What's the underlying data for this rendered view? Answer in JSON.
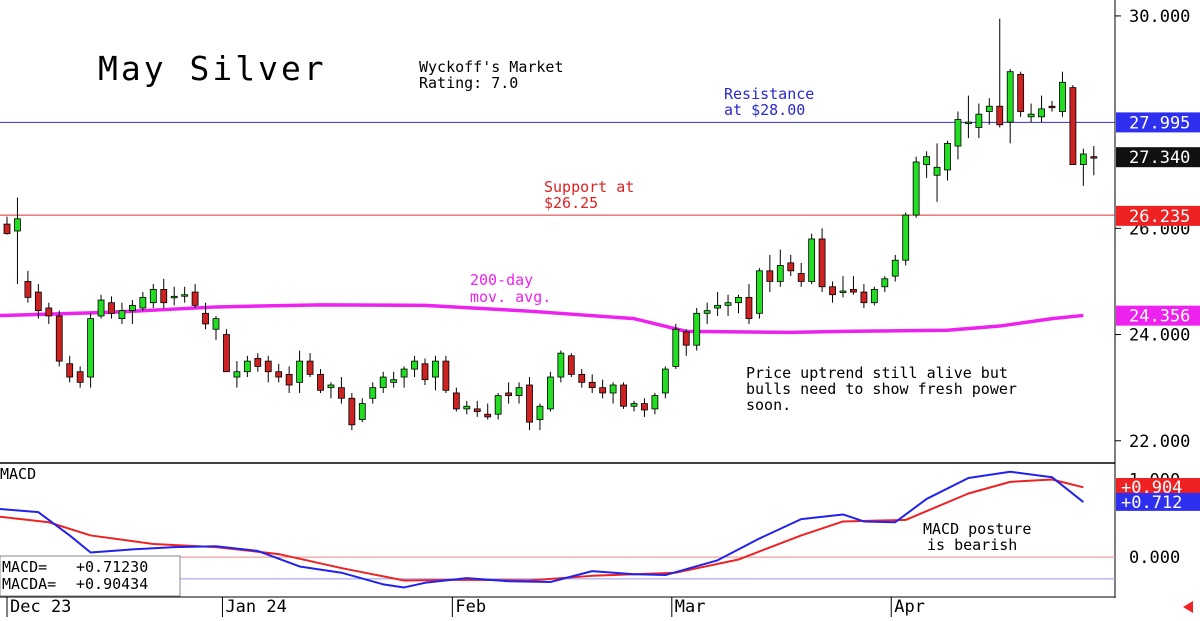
{
  "chart_data": {
    "type": "candlestick",
    "title": "May Silver",
    "rating": [
      "Wyckoff's Market",
      "Rating: 7.0"
    ],
    "y_axis": {
      "ticks": [
        "30.000",
        "26.000",
        "24.000",
        "22.000"
      ],
      "range": [
        21.6,
        30.3
      ]
    },
    "price_tags": [
      {
        "label": "27.995",
        "value": 27.995,
        "color": "#2f2ff0"
      },
      {
        "label": "27.340",
        "value": 27.34,
        "color": "#111111"
      },
      {
        "label": "26.235",
        "value": 26.235,
        "color": "#ee2222"
      },
      {
        "label": "24.356",
        "value": 24.356,
        "color": "#ee22ee"
      }
    ],
    "levels": [
      {
        "value": 27.995,
        "color": "#3333cc",
        "label": [
          "Resistance",
          "at $28.00"
        ]
      },
      {
        "value": 26.25,
        "color": "#dd3333",
        "label": [
          "Support at",
          "$26.25"
        ]
      }
    ],
    "moving_average": {
      "label": [
        "200-day",
        "mov. avg."
      ],
      "color": "#ee22ee",
      "points": [
        [
          0,
          24.36
        ],
        [
          10,
          24.42
        ],
        [
          20,
          24.52
        ],
        [
          30,
          24.56
        ],
        [
          40,
          24.55
        ],
        [
          50,
          24.44
        ],
        [
          60,
          24.3
        ],
        [
          65,
          24.06
        ],
        [
          75,
          24.04
        ],
        [
          80,
          24.06
        ],
        [
          90,
          24.08
        ],
        [
          95,
          24.16
        ],
        [
          100,
          24.3
        ],
        [
          103,
          24.36
        ]
      ]
    },
    "annotation": [
      "Price uptrend still alive but",
      "bulls need to show fresh power",
      "soon."
    ],
    "x_axis": {
      "labels": [
        {
          "label": "Dec 23",
          "index": 0
        },
        {
          "label": "Jan 24",
          "index": 21
        },
        {
          "label": "Feb",
          "index": 43
        },
        {
          "label": "Mar",
          "index": 64
        },
        {
          "label": "Apr",
          "index": 85
        }
      ]
    },
    "candles": [
      [
        26.08,
        26.22,
        25.88,
        25.9
      ],
      [
        25.95,
        26.58,
        24.95,
        26.18
      ],
      [
        25.0,
        25.2,
        24.6,
        24.7
      ],
      [
        24.8,
        24.95,
        24.3,
        24.45
      ],
      [
        24.5,
        24.6,
        24.2,
        24.35
      ],
      [
        24.35,
        24.45,
        23.4,
        23.5
      ],
      [
        23.45,
        23.6,
        23.1,
        23.2
      ],
      [
        23.3,
        23.4,
        23.0,
        23.1
      ],
      [
        23.2,
        24.4,
        23.0,
        24.3
      ],
      [
        24.35,
        24.75,
        24.3,
        24.65
      ],
      [
        24.6,
        24.72,
        24.3,
        24.4
      ],
      [
        24.3,
        24.6,
        24.2,
        24.45
      ],
      [
        24.45,
        24.65,
        24.2,
        24.55
      ],
      [
        24.5,
        24.8,
        24.45,
        24.7
      ],
      [
        24.6,
        24.95,
        24.5,
        24.85
      ],
      [
        24.85,
        25.05,
        24.5,
        24.6
      ],
      [
        24.7,
        24.9,
        24.55,
        24.72
      ],
      [
        24.75,
        24.9,
        24.6,
        24.75
      ],
      [
        24.8,
        24.95,
        24.5,
        24.55
      ],
      [
        24.4,
        24.6,
        24.1,
        24.2
      ],
      [
        24.1,
        24.35,
        23.9,
        24.3
      ],
      [
        24.0,
        24.1,
        23.3,
        23.3
      ],
      [
        23.2,
        23.5,
        23.0,
        23.3
      ],
      [
        23.3,
        23.6,
        23.2,
        23.5
      ],
      [
        23.55,
        23.65,
        23.3,
        23.4
      ],
      [
        23.5,
        23.6,
        23.1,
        23.3
      ],
      [
        23.3,
        23.45,
        23.1,
        23.2
      ],
      [
        23.25,
        23.4,
        22.9,
        23.05
      ],
      [
        23.1,
        23.7,
        22.9,
        23.5
      ],
      [
        23.5,
        23.65,
        23.2,
        23.25
      ],
      [
        23.25,
        23.35,
        22.9,
        22.95
      ],
      [
        23.0,
        23.1,
        22.8,
        23.05
      ],
      [
        23.0,
        23.2,
        22.7,
        22.8
      ],
      [
        22.8,
        22.9,
        22.2,
        22.3
      ],
      [
        22.4,
        22.8,
        22.35,
        22.7
      ],
      [
        22.8,
        23.1,
        22.7,
        23.0
      ],
      [
        23.0,
        23.3,
        22.9,
        23.2
      ],
      [
        23.1,
        23.3,
        23.0,
        23.15
      ],
      [
        23.2,
        23.4,
        23.0,
        23.35
      ],
      [
        23.35,
        23.6,
        23.2,
        23.5
      ],
      [
        23.45,
        23.55,
        23.05,
        23.15
      ],
      [
        23.2,
        23.6,
        22.95,
        23.5
      ],
      [
        23.5,
        23.6,
        22.9,
        22.95
      ],
      [
        22.9,
        23.0,
        22.55,
        22.6
      ],
      [
        22.6,
        22.75,
        22.5,
        22.65
      ],
      [
        22.6,
        22.75,
        22.45,
        22.55
      ],
      [
        22.5,
        22.7,
        22.4,
        22.45
      ],
      [
        22.5,
        22.9,
        22.4,
        22.85
      ],
      [
        22.9,
        23.1,
        22.7,
        22.85
      ],
      [
        22.85,
        23.1,
        22.7,
        23.0
      ],
      [
        23.05,
        23.2,
        22.2,
        22.35
      ],
      [
        22.4,
        22.7,
        22.2,
        22.65
      ],
      [
        22.6,
        23.3,
        22.55,
        23.2
      ],
      [
        23.2,
        23.7,
        23.1,
        23.65
      ],
      [
        23.6,
        23.65,
        23.2,
        23.25
      ],
      [
        23.25,
        23.35,
        23.0,
        23.1
      ],
      [
        23.1,
        23.25,
        22.9,
        23.0
      ],
      [
        23.0,
        23.15,
        22.8,
        22.9
      ],
      [
        22.9,
        23.1,
        22.7,
        23.05
      ],
      [
        23.05,
        23.1,
        22.6,
        22.65
      ],
      [
        22.65,
        22.75,
        22.55,
        22.7
      ],
      [
        22.7,
        22.8,
        22.45,
        22.58
      ],
      [
        22.6,
        22.9,
        22.5,
        22.85
      ],
      [
        22.9,
        23.4,
        22.8,
        23.35
      ],
      [
        23.4,
        24.2,
        23.35,
        24.1
      ],
      [
        24.05,
        24.1,
        23.6,
        23.8
      ],
      [
        23.8,
        24.5,
        23.7,
        24.4
      ],
      [
        24.4,
        24.6,
        24.2,
        24.45
      ],
      [
        24.5,
        24.8,
        24.35,
        24.55
      ],
      [
        24.55,
        24.75,
        24.35,
        24.6
      ],
      [
        24.6,
        24.75,
        24.4,
        24.7
      ],
      [
        24.7,
        24.95,
        24.2,
        24.3
      ],
      [
        24.4,
        25.25,
        24.3,
        25.2
      ],
      [
        25.2,
        25.5,
        24.8,
        25.0
      ],
      [
        25.0,
        25.6,
        24.9,
        25.3
      ],
      [
        25.35,
        25.5,
        25.1,
        25.2
      ],
      [
        25.15,
        25.35,
        24.9,
        25.0
      ],
      [
        25.0,
        25.9,
        24.95,
        25.8
      ],
      [
        25.8,
        26.0,
        24.8,
        24.9
      ],
      [
        24.9,
        25.0,
        24.6,
        24.75
      ],
      [
        24.8,
        25.1,
        24.7,
        24.82
      ],
      [
        24.85,
        25.1,
        24.75,
        24.8
      ],
      [
        24.8,
        24.95,
        24.5,
        24.6
      ],
      [
        24.6,
        24.9,
        24.55,
        24.85
      ],
      [
        24.9,
        25.1,
        24.8,
        25.05
      ],
      [
        25.1,
        25.5,
        25.0,
        25.4
      ],
      [
        25.4,
        26.3,
        25.3,
        26.25
      ],
      [
        26.25,
        27.35,
        26.2,
        27.25
      ],
      [
        27.2,
        27.45,
        26.95,
        27.35
      ],
      [
        27.0,
        27.6,
        26.5,
        27.15
      ],
      [
        27.1,
        27.65,
        26.9,
        27.6
      ],
      [
        27.55,
        28.2,
        27.3,
        28.05
      ],
      [
        28.0,
        28.5,
        27.7,
        28.0
      ],
      [
        27.9,
        28.35,
        27.7,
        28.15
      ],
      [
        28.2,
        28.45,
        27.95,
        28.3
      ],
      [
        28.3,
        29.95,
        27.9,
        27.95
      ],
      [
        28.0,
        29.0,
        27.6,
        28.95
      ],
      [
        28.9,
        28.95,
        28.1,
        28.2
      ],
      [
        28.1,
        28.35,
        28.0,
        28.15
      ],
      [
        28.1,
        28.5,
        28.0,
        28.25
      ],
      [
        28.3,
        28.4,
        28.2,
        28.28
      ],
      [
        28.2,
        28.95,
        28.1,
        28.75
      ],
      [
        28.65,
        28.7,
        27.2,
        27.2
      ],
      [
        27.2,
        27.5,
        26.8,
        27.4
      ],
      [
        27.35,
        27.55,
        27.0,
        27.34
      ]
    ],
    "macd": {
      "label": "MACD",
      "readout": [
        {
          "label": "MACD=",
          "value": "+0.71230"
        },
        {
          "label": "MACDA=",
          "value": "+0.90434"
        }
      ],
      "ticks": [
        "1.000",
        "0.000"
      ],
      "range": [
        -0.5,
        1.2
      ],
      "tags": [
        {
          "label": "+0.904",
          "value": 0.904,
          "color": "#ee2222"
        },
        {
          "label": "+0.712",
          "value": 0.712,
          "color": "#2f2ff0"
        }
      ],
      "reference_lines": [
        {
          "value": 0.0,
          "color": "#ee8888"
        },
        {
          "value": -0.28,
          "color": "#9999ee"
        }
      ],
      "annotation": [
        "MACD posture",
        "is bearish"
      ],
      "macd_line": [
        [
          0,
          0.62
        ],
        [
          3,
          0.58
        ],
        [
          6,
          0.28
        ],
        [
          8,
          0.06
        ],
        [
          12,
          0.1
        ],
        [
          16,
          0.13
        ],
        [
          20,
          0.14
        ],
        [
          24,
          0.08
        ],
        [
          28,
          -0.12
        ],
        [
          32,
          -0.2
        ],
        [
          36,
          -0.35
        ],
        [
          38,
          -0.39
        ],
        [
          40,
          -0.33
        ],
        [
          44,
          -0.27
        ],
        [
          48,
          -0.31
        ],
        [
          52,
          -0.32
        ],
        [
          56,
          -0.18
        ],
        [
          60,
          -0.22
        ],
        [
          63,
          -0.23
        ],
        [
          68,
          -0.04
        ],
        [
          72,
          0.24
        ],
        [
          76,
          0.49
        ],
        [
          80,
          0.55
        ],
        [
          82,
          0.46
        ],
        [
          85,
          0.45
        ],
        [
          88,
          0.75
        ],
        [
          92,
          1.02
        ],
        [
          96,
          1.1
        ],
        [
          100,
          1.03
        ],
        [
          103,
          0.71
        ]
      ],
      "signal_line": [
        [
          0,
          0.52
        ],
        [
          4,
          0.45
        ],
        [
          8,
          0.28
        ],
        [
          14,
          0.17
        ],
        [
          20,
          0.13
        ],
        [
          26,
          0.04
        ],
        [
          32,
          -0.14
        ],
        [
          38,
          -0.3
        ],
        [
          44,
          -0.29
        ],
        [
          50,
          -0.3
        ],
        [
          56,
          -0.24
        ],
        [
          60,
          -0.22
        ],
        [
          64,
          -0.2
        ],
        [
          70,
          -0.03
        ],
        [
          76,
          0.28
        ],
        [
          80,
          0.46
        ],
        [
          86,
          0.48
        ],
        [
          92,
          0.82
        ],
        [
          96,
          0.97
        ],
        [
          100,
          1.0
        ],
        [
          103,
          0.9
        ]
      ]
    }
  }
}
